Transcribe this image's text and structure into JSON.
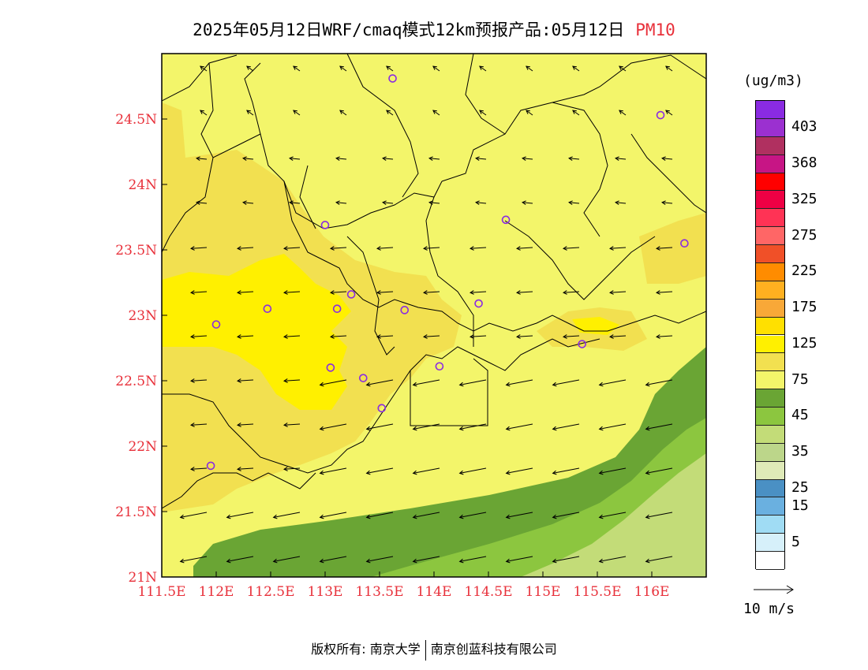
{
  "title": {
    "text": "2025年05月12日WRF/cmaq模式12km预报产品:05月12日",
    "pollutant": "PM10"
  },
  "legend": {
    "unit": "(ug/m3)",
    "bins_top_to_bottom": [
      {
        "color": "#8a2be2",
        "label": ""
      },
      {
        "color": "#9b30d0",
        "label": "403"
      },
      {
        "color": "#b03060",
        "label": ""
      },
      {
        "color": "#c71585",
        "label": "368"
      },
      {
        "color": "#ff0000",
        "label": ""
      },
      {
        "color": "#ee0044",
        "label": "325"
      },
      {
        "color": "#ff3355",
        "label": ""
      },
      {
        "color": "#ff6666",
        "label": "275"
      },
      {
        "color": "#f05028",
        "label": ""
      },
      {
        "color": "#ff8c00",
        "label": "225"
      },
      {
        "color": "#ffb020",
        "label": ""
      },
      {
        "color": "#f8a838",
        "label": "175"
      },
      {
        "color": "#ffe000",
        "label": ""
      },
      {
        "color": "#fff000",
        "label": "125"
      },
      {
        "color": "#f2e050",
        "label": ""
      },
      {
        "color": "#f3f56a",
        "label": "75"
      },
      {
        "color": "#6aa534",
        "label": ""
      },
      {
        "color": "#8cc63f",
        "label": "45"
      },
      {
        "color": "#c3dc78",
        "label": ""
      },
      {
        "color": "#bcd68a",
        "label": "35"
      },
      {
        "color": "#dfeab8",
        "label": ""
      },
      {
        "color": "#4a90c4",
        "label": "25"
      },
      {
        "color": "#6ab0e0",
        "label": "15"
      },
      {
        "color": "#a0dcf4",
        "label": ""
      },
      {
        "color": "#d6f0fa",
        "label": "5"
      },
      {
        "color": "#ffffff",
        "label": ""
      }
    ]
  },
  "wind_scale_label": "10 m/s",
  "axes": {
    "lon_labels": [
      "111.5E",
      "112E",
      "112.5E",
      "113E",
      "113.5E",
      "114E",
      "114.5E",
      "115E",
      "115.5E",
      "116E"
    ],
    "lon_values": [
      111.5,
      112.0,
      112.5,
      113.0,
      113.5,
      114.0,
      114.5,
      115.0,
      115.5,
      116.0
    ],
    "lon_range": [
      111.5,
      116.5
    ],
    "lat_labels": [
      "24.5N",
      "24N",
      "23.5N",
      "23N",
      "22.5N",
      "22N",
      "21.5N",
      "21N"
    ],
    "lat_values": [
      24.5,
      24.0,
      23.5,
      23.0,
      22.5,
      22.0,
      21.5,
      21.0
    ],
    "lat_range": [
      21.0,
      25.0
    ]
  },
  "stations": [
    {
      "lon": 113.62,
      "lat": 24.81
    },
    {
      "lon": 116.08,
      "lat": 24.53
    },
    {
      "lon": 113.0,
      "lat": 23.69
    },
    {
      "lon": 114.66,
      "lat": 23.73
    },
    {
      "lon": 116.3,
      "lat": 23.55
    },
    {
      "lon": 112.47,
      "lat": 23.05
    },
    {
      "lon": 113.11,
      "lat": 23.05
    },
    {
      "lon": 113.24,
      "lat": 23.16
    },
    {
      "lon": 113.73,
      "lat": 23.04
    },
    {
      "lon": 114.41,
      "lat": 23.09
    },
    {
      "lon": 112.0,
      "lat": 22.93
    },
    {
      "lon": 115.36,
      "lat": 22.78
    },
    {
      "lon": 113.05,
      "lat": 22.6
    },
    {
      "lon": 113.35,
      "lat": 22.52
    },
    {
      "lon": 114.05,
      "lat": 22.61
    },
    {
      "lon": 113.52,
      "lat": 22.29
    },
    {
      "lon": 111.95,
      "lat": 21.85
    }
  ],
  "footer": {
    "left": "版权所有: 南京大学",
    "right": "南京创蓝科技有限公司"
  }
}
